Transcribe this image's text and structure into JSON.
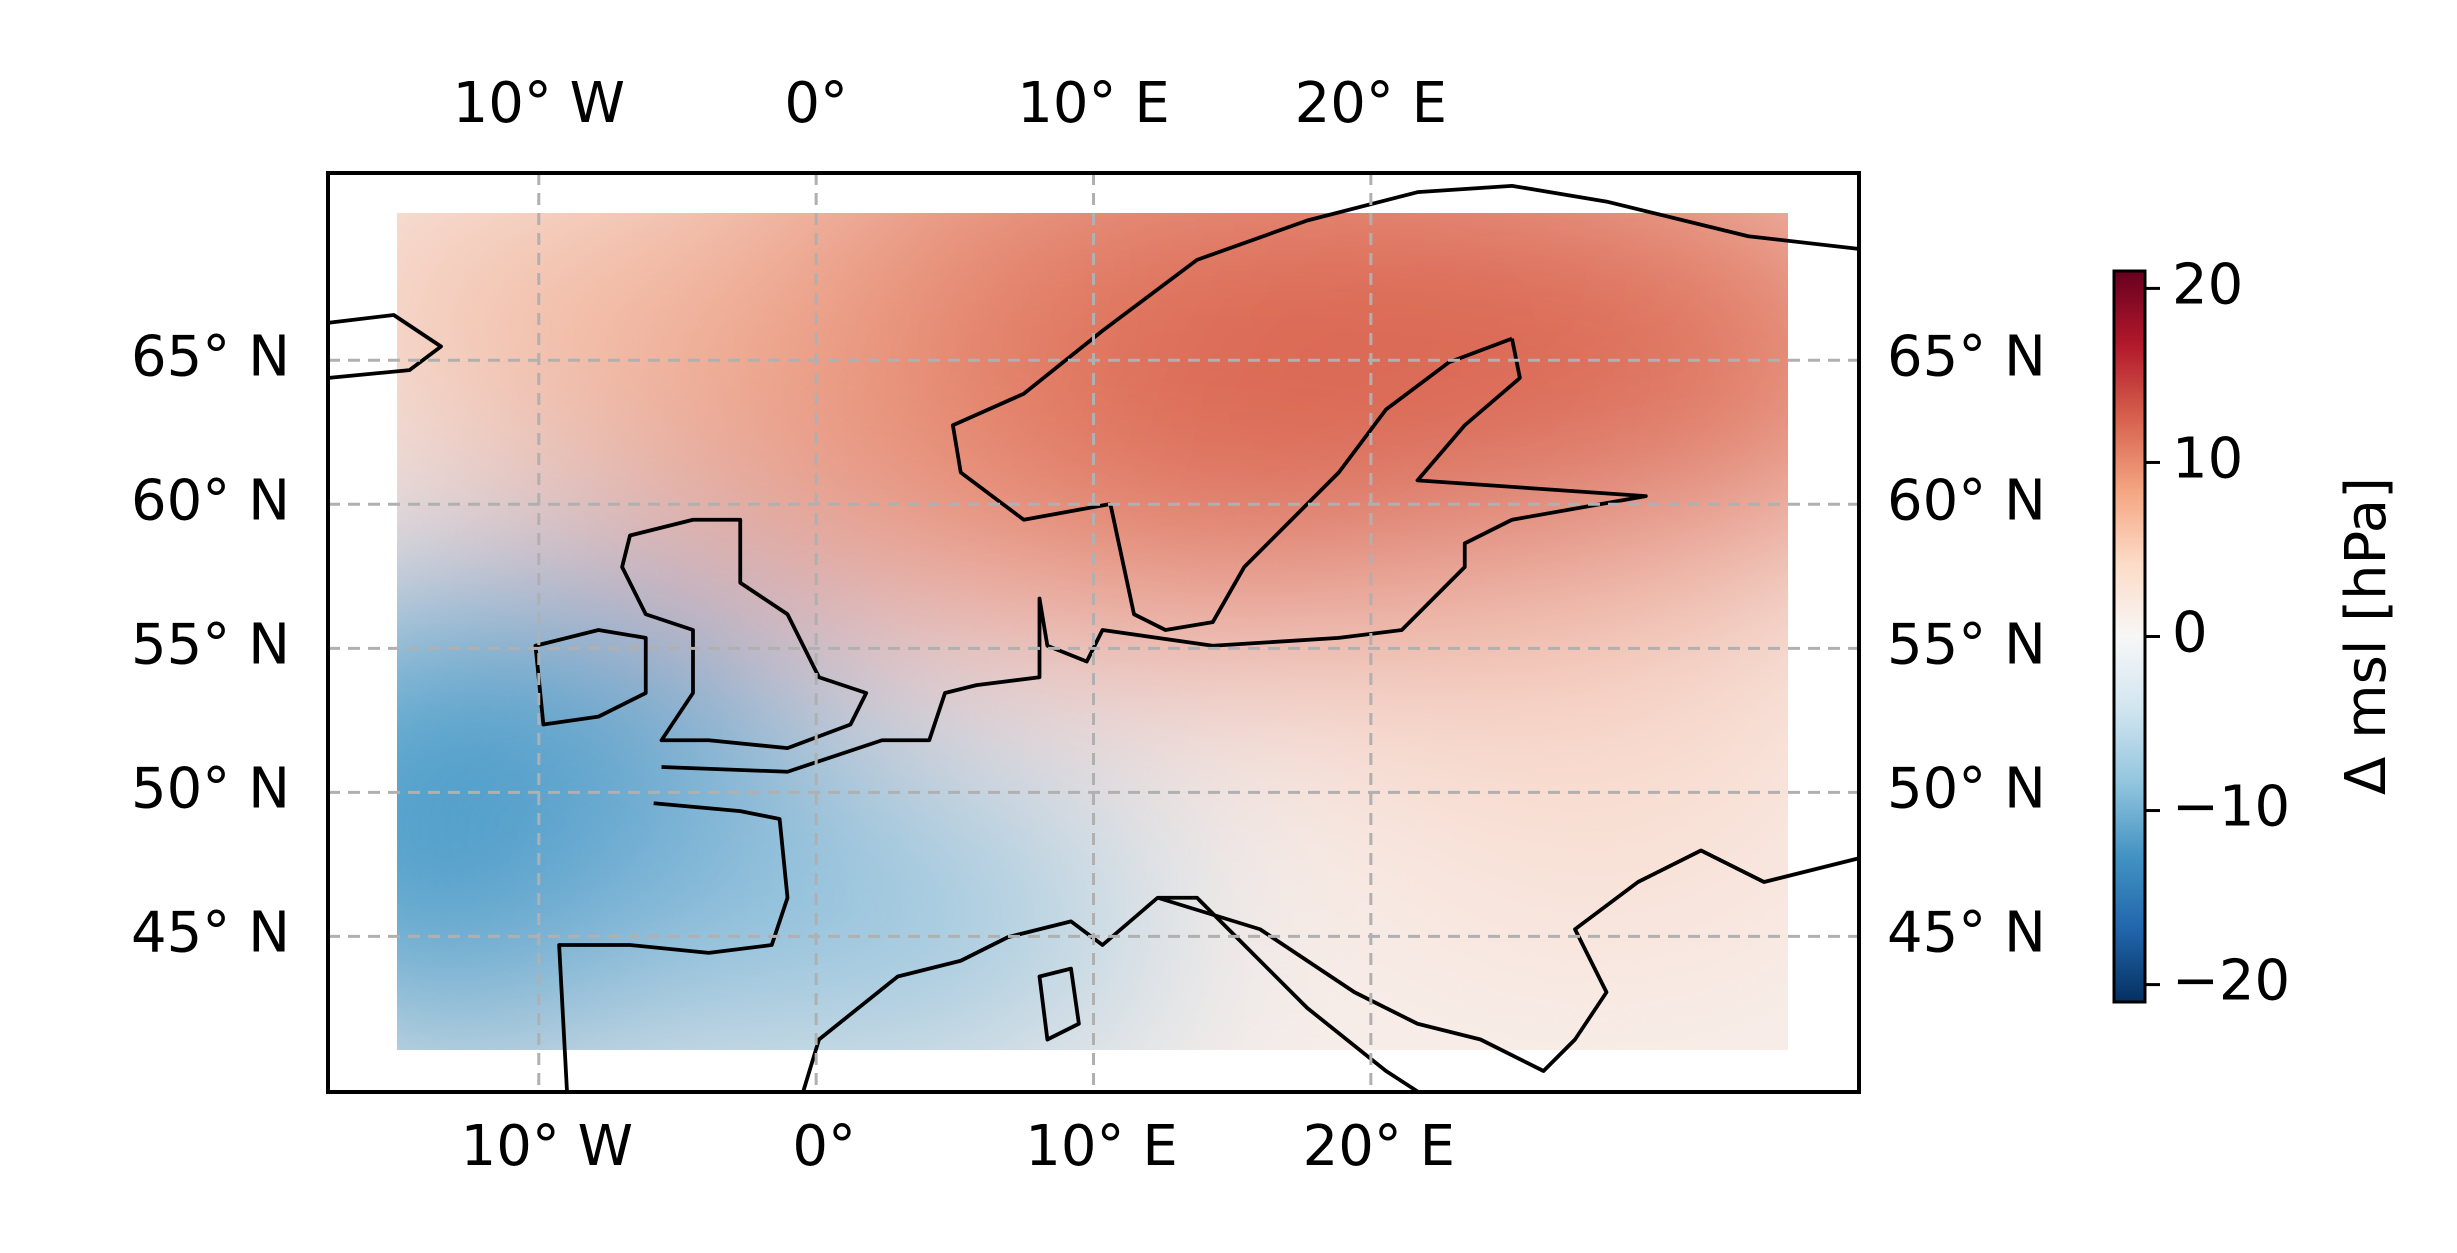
{
  "map": {
    "lon_ticks_top": [
      {
        "value": -10,
        "label": "10° W"
      },
      {
        "value": 0,
        "label": "0°"
      },
      {
        "value": 10,
        "label": "10° E"
      },
      {
        "value": 20,
        "label": "20° E"
      }
    ],
    "lon_ticks_bottom": [
      {
        "value": -10,
        "label": "10° W"
      },
      {
        "value": 0,
        "label": "0°"
      },
      {
        "value": 10,
        "label": "10° E"
      },
      {
        "value": 20,
        "label": "20° E"
      }
    ],
    "lat_ticks_left": [
      {
        "value": 65,
        "label": "65° N"
      },
      {
        "value": 60,
        "label": "60° N"
      },
      {
        "value": 55,
        "label": "55° N"
      },
      {
        "value": 50,
        "label": "50° N"
      },
      {
        "value": 45,
        "label": "45° N"
      }
    ],
    "lat_ticks_right": [
      {
        "value": 65,
        "label": "65° N"
      },
      {
        "value": 60,
        "label": "60° N"
      },
      {
        "value": 55,
        "label": "55° N"
      },
      {
        "value": 50,
        "label": "50° N"
      },
      {
        "value": 45,
        "label": "45° N"
      }
    ],
    "xlim": [
      -17.6,
      37.6
    ],
    "ylim": [
      39.6,
      71.5
    ],
    "grid": true,
    "colorbar": {
      "label": "Δ msl [hPa]",
      "lim": [
        -21,
        21
      ],
      "ticks": [
        {
          "value": -20,
          "label": "−20"
        },
        {
          "value": -10,
          "label": "−10"
        },
        0,
        10,
        20
      ]
    }
  }
}
